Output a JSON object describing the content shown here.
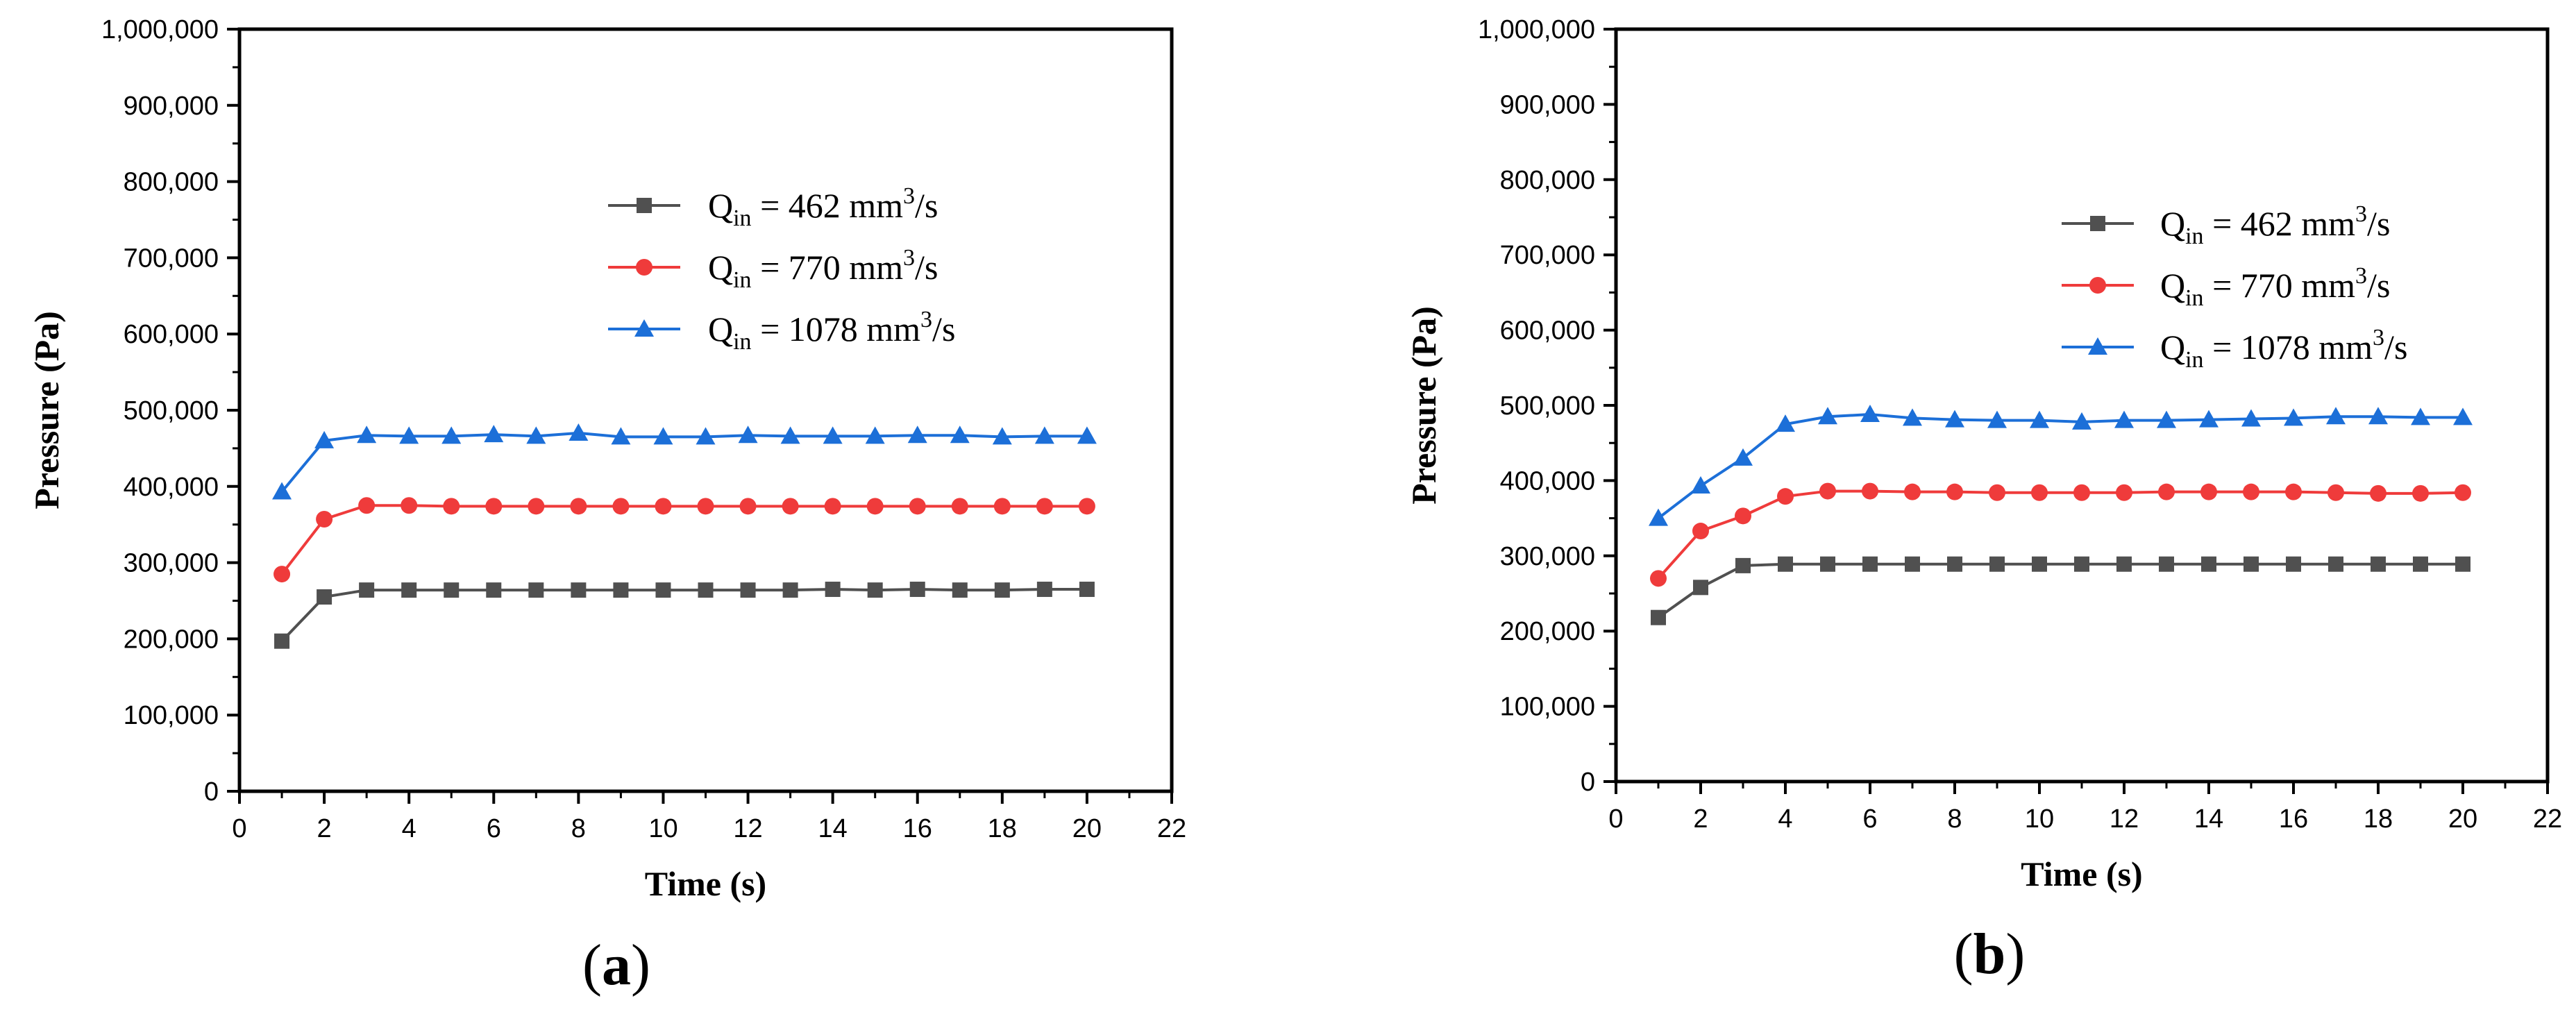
{
  "chart_data": [
    {
      "type": "line",
      "panel_label": "a",
      "paren_open": "(",
      "paren_close": ")",
      "title": "",
      "xlabel": "Time (s)",
      "ylabel": "Pressure (Pa)",
      "xlim": [
        0,
        22
      ],
      "ylim": [
        0,
        1000000
      ],
      "x_ticks": [
        "0",
        "2",
        "4",
        "6",
        "8",
        "10",
        "12",
        "14",
        "16",
        "18",
        "20",
        "22"
      ],
      "y_ticks": [
        "0",
        "100,000",
        "200,000",
        "300,000",
        "400,000",
        "500,000",
        "600,000",
        "700,000",
        "800,000",
        "900,000",
        "1,000,000"
      ],
      "grid": false,
      "legend": "top-right",
      "x": [
        1,
        2,
        3,
        4,
        5,
        6,
        7,
        8,
        9,
        10,
        11,
        12,
        13,
        14,
        15,
        16,
        17,
        18,
        19,
        20
      ],
      "series": [
        {
          "name": "Q_in = 462 mm^3/s",
          "q_prefix": "Q",
          "q_sub": "in",
          "eq": " = 462 mm",
          "sup": "3",
          "unit_tail": "/s",
          "color": "#505050",
          "marker": "square",
          "values": [
            197000,
            255000,
            264000,
            264000,
            264000,
            264000,
            264000,
            264000,
            264000,
            264000,
            264000,
            264000,
            264000,
            265000,
            264000,
            265000,
            264000,
            264000,
            265000,
            265000
          ]
        },
        {
          "name": "Q_in = 770 mm^3/s",
          "q_prefix": "Q",
          "q_sub": "in",
          "eq": " = 770 mm",
          "sup": "3",
          "unit_tail": "/s",
          "color": "#ef3b3b",
          "marker": "circle",
          "values": [
            285000,
            357000,
            375000,
            375000,
            374000,
            374000,
            374000,
            374000,
            374000,
            374000,
            374000,
            374000,
            374000,
            374000,
            374000,
            374000,
            374000,
            374000,
            374000,
            374000
          ]
        },
        {
          "name": "Q_in = 1078 mm^3/s",
          "q_prefix": "Q",
          "q_sub": "in",
          "eq": " = 1078 mm",
          "sup": "3",
          "unit_tail": "/s",
          "color": "#1c6fd8",
          "marker": "triangle",
          "values": [
            393000,
            460000,
            467000,
            466000,
            466000,
            468000,
            466000,
            470000,
            465000,
            465000,
            465000,
            467000,
            466000,
            466000,
            466000,
            467000,
            467000,
            465000,
            466000,
            466000
          ]
        }
      ]
    },
    {
      "type": "line",
      "panel_label": "b",
      "paren_open": "(",
      "paren_close": ")",
      "title": "",
      "xlabel": "Time (s)",
      "ylabel": "Pressure (Pa)",
      "xlim": [
        0,
        22
      ],
      "ylim": [
        0,
        1000000
      ],
      "x_ticks": [
        "0",
        "2",
        "4",
        "6",
        "8",
        "10",
        "12",
        "14",
        "16",
        "18",
        "20",
        "22"
      ],
      "y_ticks": [
        "0",
        "100,000",
        "200,000",
        "300,000",
        "400,000",
        "500,000",
        "600,000",
        "700,000",
        "800,000",
        "900,000",
        "1,000,000"
      ],
      "grid": false,
      "legend": "top-right",
      "x": [
        1,
        2,
        3,
        4,
        5,
        6,
        7,
        8,
        9,
        10,
        11,
        12,
        13,
        14,
        15,
        16,
        17,
        18,
        19,
        20
      ],
      "series": [
        {
          "name": "Q_in = 462 mm^3/s",
          "q_prefix": "Q",
          "q_sub": "in",
          "eq": " = 462 mm",
          "sup": "3",
          "unit_tail": "/s",
          "color": "#505050",
          "marker": "square",
          "values": [
            218000,
            258000,
            287000,
            289000,
            289000,
            289000,
            289000,
            289000,
            289000,
            289000,
            289000,
            289000,
            289000,
            289000,
            289000,
            289000,
            289000,
            289000,
            289000,
            289000
          ]
        },
        {
          "name": "Q_in = 770 mm^3/s",
          "q_prefix": "Q",
          "q_sub": "in",
          "eq": " = 770 mm",
          "sup": "3",
          "unit_tail": "/s",
          "color": "#ef3b3b",
          "marker": "circle",
          "values": [
            270000,
            333000,
            353000,
            379000,
            386000,
            386000,
            385000,
            385000,
            384000,
            384000,
            384000,
            384000,
            385000,
            385000,
            385000,
            385000,
            384000,
            383000,
            383000,
            384000
          ]
        },
        {
          "name": "Q_in = 1078 mm^3/s",
          "q_prefix": "Q",
          "q_sub": "in",
          "eq": " = 1078 mm",
          "sup": "3",
          "unit_tail": "/s",
          "color": "#1c6fd8",
          "marker": "triangle",
          "values": [
            350000,
            393000,
            430000,
            475000,
            485000,
            488000,
            483000,
            481000,
            480000,
            480000,
            478000,
            480000,
            480000,
            481000,
            482000,
            483000,
            485000,
            485000,
            484000,
            484000
          ]
        }
      ]
    }
  ]
}
